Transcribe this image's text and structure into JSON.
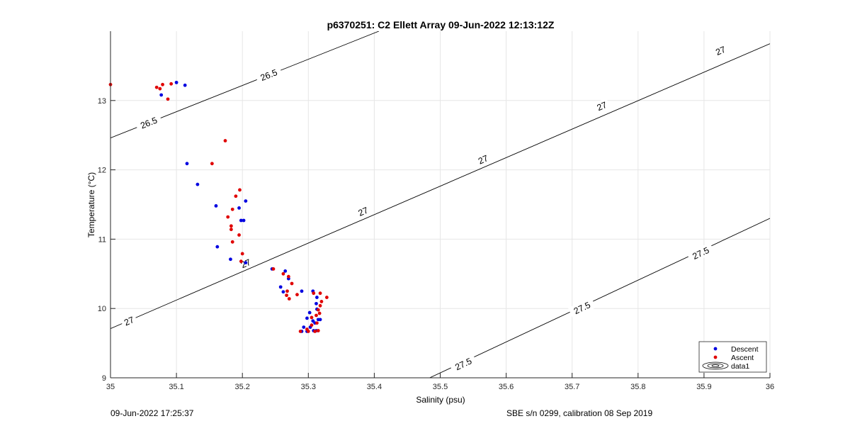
{
  "chart_data": {
    "type": "scatter",
    "title": "p6370251: C2 Ellett Array 09-Jun-2022 12:13:12Z",
    "xlabel": "Salinity (psu)",
    "ylabel": "Temperature (°C)",
    "xlim": [
      35,
      36
    ],
    "ylim": [
      9,
      14
    ],
    "xticks": [
      35,
      35.1,
      35.2,
      35.3,
      35.4,
      35.5,
      35.6,
      35.7,
      35.8,
      35.9,
      36
    ],
    "xtick_labels": [
      "35",
      "35.1",
      "35.2",
      "35.3",
      "35.4",
      "35.5",
      "35.6",
      "35.7",
      "35.8",
      "35.9",
      "36"
    ],
    "yticks": [
      9,
      10,
      11,
      12,
      13
    ],
    "ytick_labels": [
      "9",
      "10",
      "11",
      "12",
      "13"
    ],
    "grid": true,
    "legend_position": "bottom-right",
    "legend": [
      "Descent",
      "Ascent",
      "data1"
    ],
    "colors": {
      "descent": "#0000e0",
      "ascent": "#e00000",
      "contour": "#000000",
      "grid": "#e6e6e6"
    },
    "series": [
      {
        "name": "Descent",
        "points": [
          [
            35.077,
            13.08
          ],
          [
            35.1,
            13.26
          ],
          [
            35.113,
            13.22
          ],
          [
            35.116,
            12.09
          ],
          [
            35.132,
            11.79
          ],
          [
            35.16,
            11.48
          ],
          [
            35.195,
            11.45
          ],
          [
            35.205,
            11.55
          ],
          [
            35.198,
            11.27
          ],
          [
            35.202,
            11.27
          ],
          [
            35.162,
            10.89
          ],
          [
            35.182,
            10.71
          ],
          [
            35.205,
            10.66
          ],
          [
            35.245,
            10.57
          ],
          [
            35.265,
            10.54
          ],
          [
            35.27,
            10.43
          ],
          [
            35.258,
            10.31
          ],
          [
            35.262,
            10.24
          ],
          [
            35.29,
            10.25
          ],
          [
            35.307,
            10.25
          ],
          [
            35.313,
            10.16
          ],
          [
            35.312,
            10.07
          ],
          [
            35.313,
            9.99
          ],
          [
            35.302,
            9.94
          ],
          [
            35.298,
            9.86
          ],
          [
            35.307,
            9.82
          ],
          [
            35.31,
            9.79
          ],
          [
            35.315,
            9.84
          ],
          [
            35.318,
            9.84
          ],
          [
            35.293,
            9.73
          ],
          [
            35.303,
            9.73
          ],
          [
            35.308,
            9.68
          ],
          [
            35.29,
            9.67
          ],
          [
            35.298,
            9.67
          ],
          [
            35.312,
            9.68
          ]
        ]
      },
      {
        "name": "Ascent",
        "points": [
          [
            35,
            13.23
          ],
          [
            35.07,
            13.19
          ],
          [
            35.075,
            13.17
          ],
          [
            35.079,
            13.23
          ],
          [
            35.092,
            13.24
          ],
          [
            35.087,
            13.02
          ],
          [
            35.174,
            12.42
          ],
          [
            35.154,
            12.09
          ],
          [
            35.196,
            11.71
          ],
          [
            35.19,
            11.62
          ],
          [
            35.185,
            11.43
          ],
          [
            35.178,
            11.32
          ],
          [
            35.183,
            11.19
          ],
          [
            35.183,
            11.14
          ],
          [
            35.195,
            11.06
          ],
          [
            35.185,
            10.96
          ],
          [
            35.2,
            10.79
          ],
          [
            35.198,
            10.68
          ],
          [
            35.247,
            10.57
          ],
          [
            35.262,
            10.5
          ],
          [
            35.27,
            10.46
          ],
          [
            35.275,
            10.36
          ],
          [
            35.268,
            10.25
          ],
          [
            35.267,
            10.19
          ],
          [
            35.271,
            10.14
          ],
          [
            35.283,
            10.2
          ],
          [
            35.308,
            10.22
          ],
          [
            35.318,
            10.22
          ],
          [
            35.328,
            10.16
          ],
          [
            35.32,
            10.1
          ],
          [
            35.318,
            10.04
          ],
          [
            35.315,
            9.98
          ],
          [
            35.317,
            9.93
          ],
          [
            35.312,
            9.9
          ],
          [
            35.305,
            9.87
          ],
          [
            35.313,
            9.79
          ],
          [
            35.305,
            9.76
          ],
          [
            35.298,
            9.7
          ],
          [
            35.31,
            9.67
          ],
          [
            35.315,
            9.68
          ],
          [
            35.288,
            9.67
          ],
          [
            35.3,
            9.67
          ]
        ]
      }
    ],
    "contours": [
      {
        "label": "26.5",
        "points": [
          [
            35,
            12.46
          ],
          [
            35.407,
            14
          ]
        ],
        "label_positions": [
          [
            35.058,
            12.68
          ],
          [
            35.24,
            13.37
          ]
        ]
      },
      {
        "label": "27",
        "points": [
          [
            35,
            9.71
          ],
          [
            36,
            13.82
          ]
        ],
        "label_positions": [
          [
            35.028,
            9.82
          ],
          [
            35.205,
            10.65
          ],
          [
            35.383,
            11.4
          ],
          [
            35.565,
            12.15
          ],
          [
            35.745,
            12.92
          ],
          [
            35.925,
            13.72
          ]
        ]
      },
      {
        "label": "27.5",
        "points": [
          [
            35.484,
            9
          ],
          [
            36,
            11.3
          ]
        ],
        "label_positions": [
          [
            35.535,
            9.2
          ],
          [
            35.715,
            10.01
          ],
          [
            35.895,
            10.8
          ]
        ]
      }
    ]
  },
  "footer": {
    "left": "09-Jun-2022 17:25:37",
    "right": "SBE s/n 0299, calibration 08 Sep 2019"
  }
}
